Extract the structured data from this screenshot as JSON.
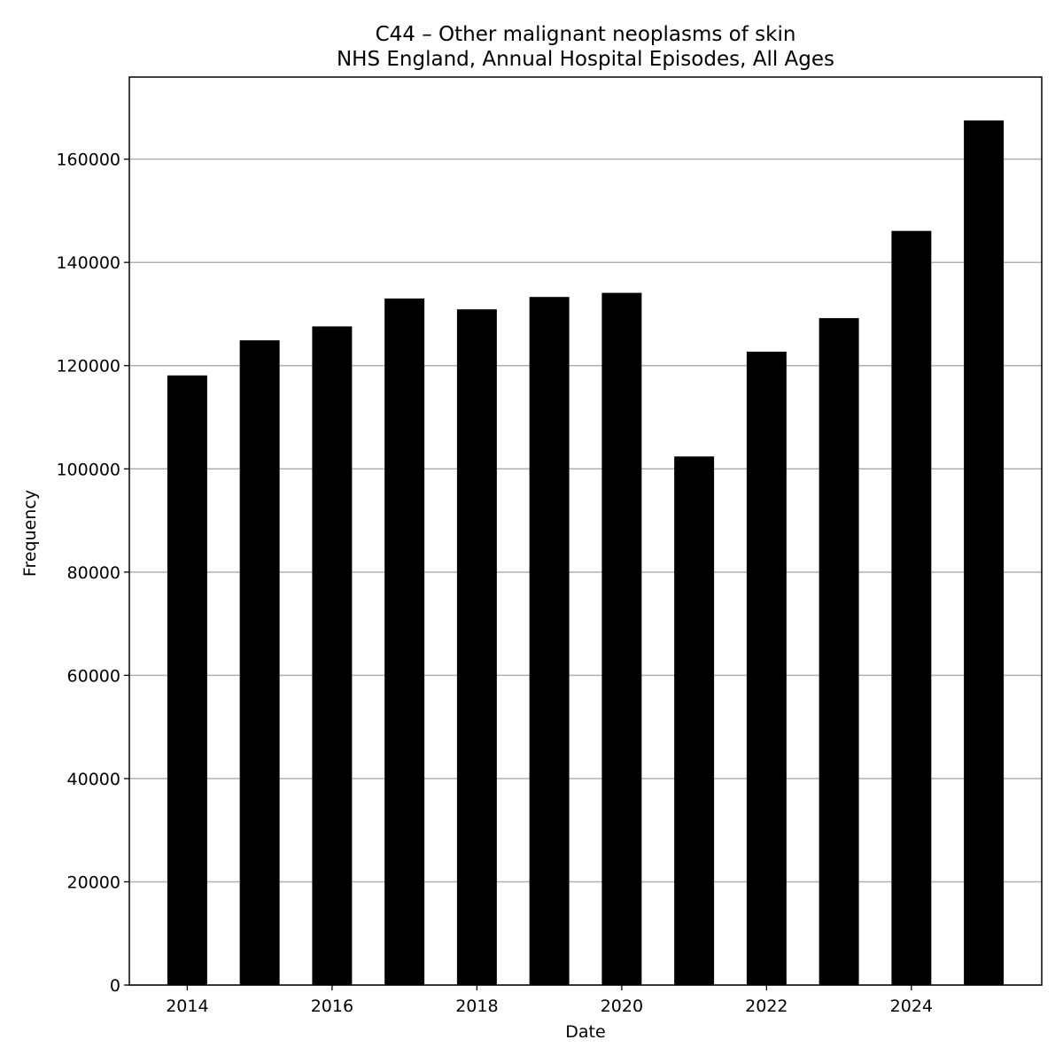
{
  "chart_data": {
    "type": "bar",
    "title": "C44 – Other malignant neoplasms of skin",
    "subtitle": "NHS England, Annual Hospital Episodes, All Ages",
    "xlabel": "Date",
    "ylabel": "Frequency",
    "categories": [
      "2014",
      "2015",
      "2016",
      "2017",
      "2018",
      "2019",
      "2020",
      "2021",
      "2022",
      "2023",
      "2024",
      "2025"
    ],
    "values": [
      118100,
      124900,
      127600,
      133000,
      130900,
      133300,
      134100,
      102400,
      122700,
      129200,
      146100,
      167500
    ],
    "x_ticks": [
      "2014",
      "2016",
      "2018",
      "2020",
      "2022",
      "2024"
    ],
    "y_ticks": [
      0,
      20000,
      40000,
      60000,
      80000,
      100000,
      120000,
      140000,
      160000
    ],
    "ylim": [
      0,
      175900
    ],
    "xlim": [
      2013.2,
      2025.8
    ],
    "grid": "horizontal",
    "bar_color": "#000000",
    "grid_color": "#b0b0b0"
  }
}
